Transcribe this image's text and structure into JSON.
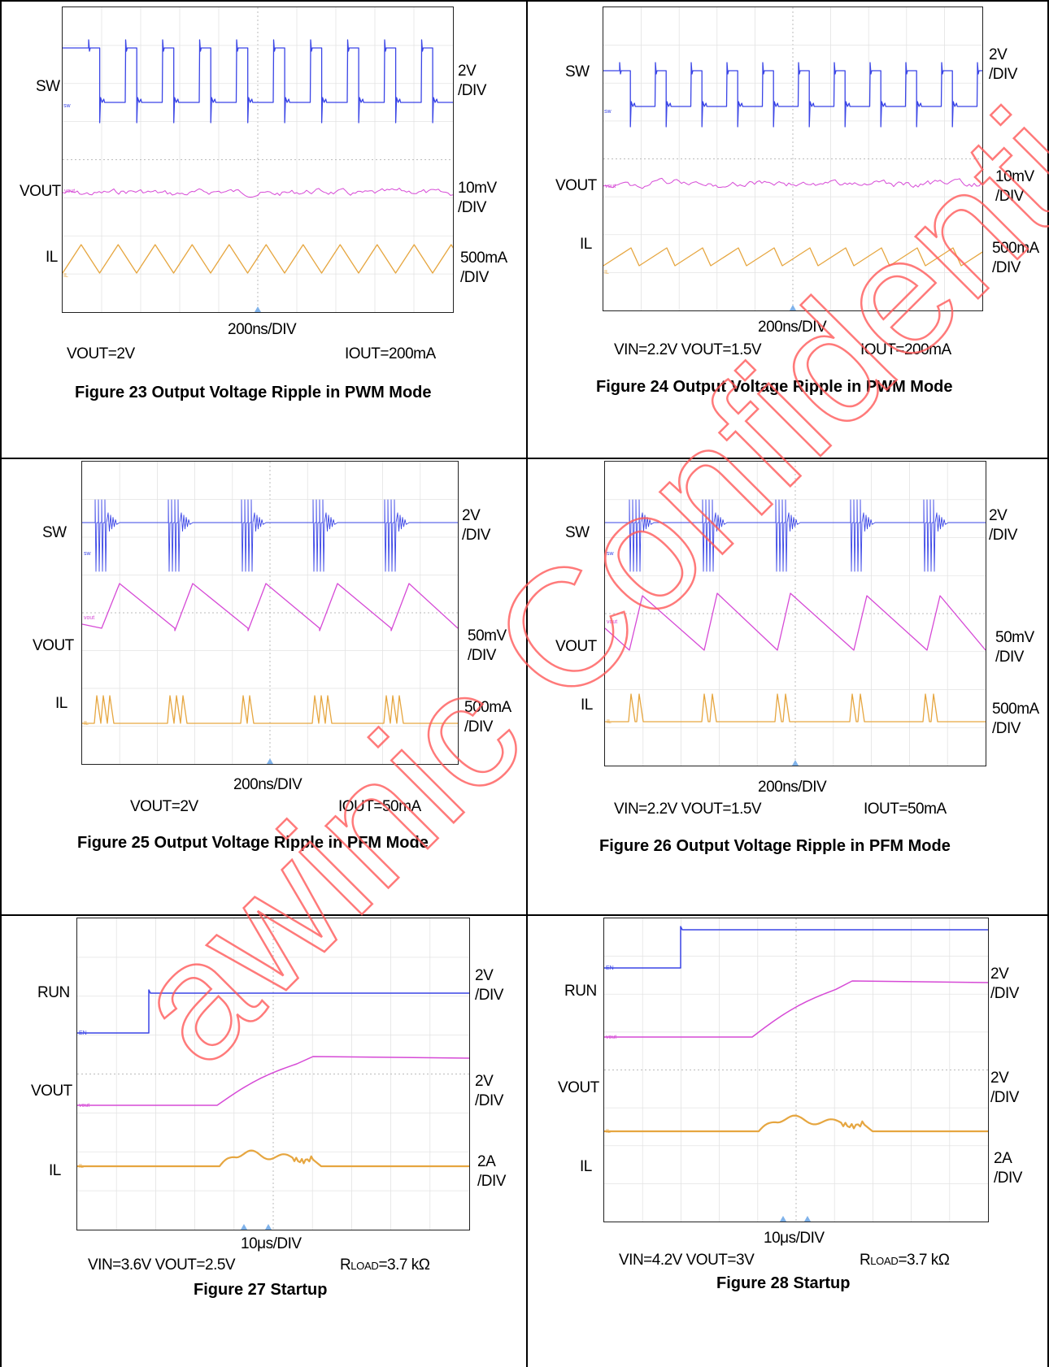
{
  "panels": [
    {
      "id": "fig23",
      "title": "Figure 23 Output Voltage Ripple in PWM Mode",
      "timebase": "200ns/DIV",
      "cond_left": "VOUT=2V",
      "cond_right": "IOUT=200mA",
      "channels": [
        {
          "label": "SW",
          "scale": "2V\n/DIV",
          "color": "#3a45e6"
        },
        {
          "label": "VOUT",
          "scale": "10mV\n/DIV",
          "color": "#d64ad6"
        },
        {
          "label": "IL",
          "scale": "500mA\n/DIV",
          "color": "#e6a640"
        }
      ]
    },
    {
      "id": "fig24",
      "title": "Figure 24 Output Voltage Ripple in PWM Mode",
      "timebase": "200ns/DIV",
      "cond_left": "VIN=2.2V VOUT=1.5V",
      "cond_right": "IOUT=200mA",
      "channels": [
        {
          "label": "SW",
          "scale": "2V\n/DIV",
          "color": "#3a45e6"
        },
        {
          "label": "VOUT",
          "scale": "10mV\n/DIV",
          "color": "#d64ad6"
        },
        {
          "label": "IL",
          "scale": "500mA\n/DIV",
          "color": "#e6a640"
        }
      ]
    },
    {
      "id": "fig25",
      "title": "Figure 25 Output Voltage Ripple in PFM Mode",
      "timebase": "200ns/DIV",
      "cond_left": "VOUT=2V",
      "cond_right": "IOUT=50mA",
      "channels": [
        {
          "label": "SW",
          "scale": "2V\n/DIV",
          "color": "#3a45e6"
        },
        {
          "label": "VOUT",
          "scale": "50mV\n/DIV",
          "color": "#d64ad6"
        },
        {
          "label": "IL",
          "scale": "500mA\n/DIV",
          "color": "#e6a640"
        }
      ]
    },
    {
      "id": "fig26",
      "title": "Figure 26 Output Voltage Ripple in PFM Mode",
      "timebase": "200ns/DIV",
      "cond_left": "VIN=2.2V VOUT=1.5V",
      "cond_right": "IOUT=50mA",
      "channels": [
        {
          "label": "SW",
          "scale": "2V\n/DIV",
          "color": "#3a45e6"
        },
        {
          "label": "VOUT",
          "scale": "50mV\n/DIV",
          "color": "#d64ad6"
        },
        {
          "label": "IL",
          "scale": "500mA\n/DIV",
          "color": "#e6a640"
        }
      ]
    },
    {
      "id": "fig27",
      "title": "Figure 27 Startup",
      "timebase": "10μs/DIV",
      "cond_left": "VIN=3.6V VOUT=2.5V",
      "cond_right_main": "R",
      "cond_right_sub": "LOAD",
      "cond_right_tail": "=3.7 kΩ",
      "channels": [
        {
          "label": "RUN",
          "scale": "2V\n/DIV",
          "color": "#3a45e6"
        },
        {
          "label": "VOUT",
          "scale": "2V\n/DIV",
          "color": "#d64ad6"
        },
        {
          "label": "IL",
          "scale": "2A\n/DIV",
          "color": "#e6a640"
        }
      ]
    },
    {
      "id": "fig28",
      "title": "Figure 28 Startup",
      "timebase": "10μs/DIV",
      "cond_left": "VIN=4.2V VOUT=3V",
      "cond_right_main": "R",
      "cond_right_sub": "LOAD",
      "cond_right_tail": "=3.7 kΩ",
      "channels": [
        {
          "label": "RUN",
          "scale": "2V\n/DIV",
          "color": "#3a45e6"
        },
        {
          "label": "VOUT",
          "scale": "2V\n/DIV",
          "color": "#d64ad6"
        },
        {
          "label": "IL",
          "scale": "2A\n/DIV",
          "color": "#e6a640"
        }
      ]
    }
  ],
  "trace_tags": {
    "sw": "sw",
    "vout": "vout",
    "il": "IL",
    "en": "EN"
  },
  "watermark": {
    "text": "awinic Confidential",
    "color": "#ff5a5a"
  }
}
